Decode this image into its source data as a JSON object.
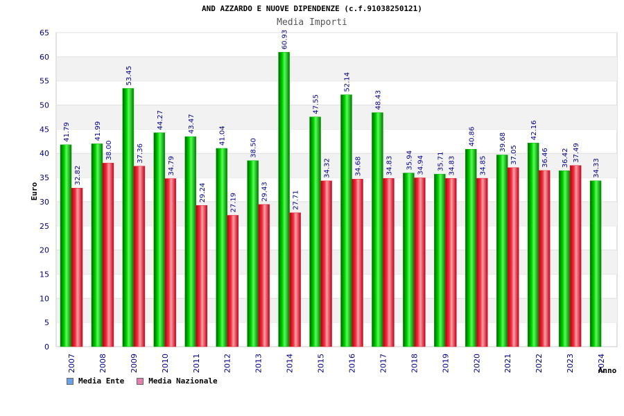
{
  "header": {
    "title": "AND AZZARDO E NUOVE DIPENDENZE (c.f.91038250121)",
    "subtitle": "Media Importi"
  },
  "legend": [
    {
      "label": "Media Ente",
      "color": "#6aa0e8"
    },
    {
      "label": "Media Nazionale",
      "color": "#e080b0"
    }
  ],
  "colors": {
    "ente": "#00b000",
    "nazionale": "#e8202a",
    "band": "#f2f2f2",
    "axis_text": "#00008b"
  },
  "chart_data": {
    "type": "bar",
    "ylabel": "Euro",
    "xlabel": "Anno",
    "ylim": [
      0,
      65
    ],
    "y_ticks": [
      0,
      5,
      10,
      15,
      20,
      25,
      30,
      35,
      40,
      45,
      50,
      55,
      60,
      65
    ],
    "grid": "alternating horizontal bands",
    "legend_position": "bottom-left",
    "categories": [
      "2007",
      "2008",
      "2009",
      "2010",
      "2011",
      "2012",
      "2013",
      "2014",
      "2015",
      "2016",
      "2017",
      "2018",
      "2019",
      "2020",
      "2021",
      "2022",
      "2023",
      "2024"
    ],
    "series": [
      {
        "name": "Media Ente",
        "values": [
          41.79,
          41.99,
          53.45,
          44.27,
          43.47,
          41.04,
          38.5,
          60.93,
          47.55,
          52.14,
          48.43,
          35.94,
          35.71,
          40.86,
          39.68,
          42.16,
          36.42,
          34.33
        ],
        "labels": [
          "41.79",
          "41.99",
          "53.45",
          "44.27",
          "43.47",
          "41.04",
          "38.50",
          "60.93",
          "47.55",
          "52.14",
          "48.43",
          "35.94",
          "35.71",
          "40.86",
          "39.68",
          "42.16",
          "36.42",
          "34.33"
        ]
      },
      {
        "name": "Media Nazionale",
        "values": [
          32.82,
          38.0,
          37.36,
          34.79,
          29.24,
          27.19,
          29.43,
          27.71,
          34.32,
          34.68,
          34.83,
          34.94,
          34.83,
          34.85,
          37.05,
          36.46,
          37.49,
          null
        ],
        "labels": [
          "32.82",
          "38.00",
          "37.36",
          "34.79",
          "29.24",
          "27.19",
          "29.43",
          "27.71",
          "34.32",
          "34.68",
          "34.83",
          "34.94",
          "34.83",
          "34.85",
          "37.05",
          "36.46",
          "37.49",
          ""
        ]
      }
    ]
  }
}
